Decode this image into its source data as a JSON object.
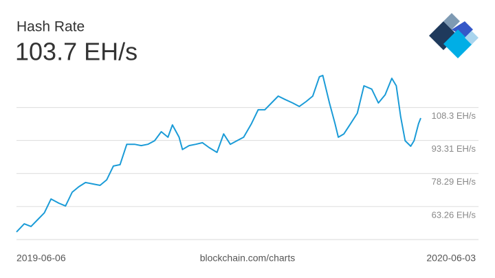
{
  "chart_data": {
    "type": "line",
    "title": "Hash Rate",
    "subtitle": "103.7 EH/s",
    "source": "blockchain.com/charts",
    "x": [
      "2019-06-06",
      "2019-06-13",
      "2019-06-19",
      "2019-06-25",
      "2019-07-01",
      "2019-07-07",
      "2019-07-14",
      "2019-07-20",
      "2019-07-26",
      "2019-08-01",
      "2019-08-07",
      "2019-08-14",
      "2019-08-20",
      "2019-08-26",
      "2019-09-01",
      "2019-09-07",
      "2019-09-13",
      "2019-09-20",
      "2019-09-26",
      "2019-10-02",
      "2019-10-08",
      "2019-10-14",
      "2019-10-20",
      "2019-10-24",
      "2019-10-30",
      "2019-11-02",
      "2019-11-08",
      "2019-11-14",
      "2019-11-20",
      "2019-11-26",
      "2019-12-03",
      "2019-12-09",
      "2019-12-15",
      "2019-12-21",
      "2019-12-27",
      "2020-01-03",
      "2020-01-09",
      "2020-01-15",
      "2020-01-21",
      "2020-01-27",
      "2020-02-02",
      "2020-02-09",
      "2020-02-15",
      "2020-02-21",
      "2020-02-27",
      "2020-03-04",
      "2020-03-07",
      "2020-03-13",
      "2020-03-18",
      "2020-03-21",
      "2020-03-26",
      "2020-04-01",
      "2020-04-07",
      "2020-04-13",
      "2020-04-20",
      "2020-04-26",
      "2020-05-02",
      "2020-05-08",
      "2020-05-12",
      "2020-05-16",
      "2020-05-20",
      "2020-05-25",
      "2020-05-28",
      "2020-06-01",
      "2020-06-03"
    ],
    "series": [
      {
        "name": "Hash Rate",
        "color": "#1a9bd7",
        "values": [
          51.7,
          55.4,
          54.2,
          57.3,
          60.4,
          66.7,
          64.8,
          63.5,
          69.8,
          72.3,
          74.2,
          73.5,
          72.9,
          75.4,
          81.7,
          82.3,
          91.6,
          91.6,
          91.0,
          91.6,
          93.2,
          97.3,
          94.8,
          100.4,
          94.8,
          89.2,
          91.0,
          91.6,
          92.3,
          90.1,
          87.9,
          96.3,
          91.6,
          93.2,
          94.8,
          101.0,
          107.3,
          107.3,
          110.4,
          113.5,
          112.0,
          110.4,
          108.8,
          111.0,
          113.5,
          122.3,
          122.9,
          110.4,
          101.0,
          94.8,
          96.3,
          101.0,
          105.7,
          118.2,
          116.7,
          110.4,
          114.1,
          121.6,
          118.2,
          104.1,
          93.2,
          90.7,
          93.2,
          101.0,
          103.5
        ]
      }
    ],
    "xlim": [
      "2019-06-06",
      "2020-06-03"
    ],
    "ylim": [
      48.24,
      126
    ],
    "yticks": [
      {
        "value": 63.26,
        "label": "63.26 EH/s"
      },
      {
        "value": 78.29,
        "label": "78.29 EH/s"
      },
      {
        "value": 93.31,
        "label": "93.31 EH/s"
      },
      {
        "value": 108.3,
        "label": "108.3 EH/s"
      }
    ],
    "grid": true
  }
}
